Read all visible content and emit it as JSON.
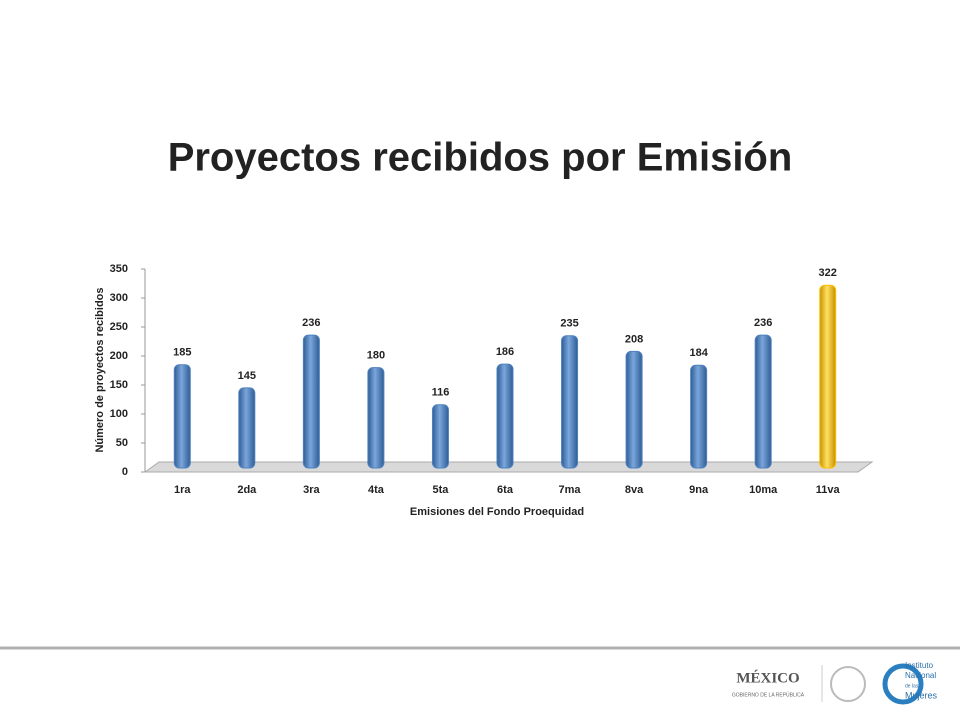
{
  "chart_data": {
    "type": "bar",
    "title": "Proyectos recibidos por Emisión",
    "x_label": "Emisiones del Fondo Proequidad",
    "y_label": "Número de proyectos recibidos",
    "categories": [
      "1ra",
      "2da",
      "3ra",
      "4ta",
      "5ta",
      "6ta",
      "7ma",
      "8va",
      "9na",
      "10ma",
      "11va"
    ],
    "values": [
      185,
      145,
      236,
      180,
      116,
      186,
      235,
      208,
      184,
      236,
      322
    ],
    "colors": [
      "#4f81bd",
      "#4f81bd",
      "#4f81bd",
      "#4f81bd",
      "#4f81bd",
      "#4f81bd",
      "#4f81bd",
      "#4f81bd",
      "#4f81bd",
      "#4f81bd",
      "#ffc000"
    ],
    "ylim": [
      0,
      350
    ],
    "yticks": [
      0,
      50,
      100,
      150,
      200,
      250,
      300,
      350
    ],
    "grid": false
  },
  "footer": {
    "mexico": "MÉXICO",
    "gobierno": "GOBIERNO DE LA REPÚBLICA",
    "instituto": [
      "Instituto",
      "Nacional",
      "de las",
      "Mujeres"
    ]
  }
}
